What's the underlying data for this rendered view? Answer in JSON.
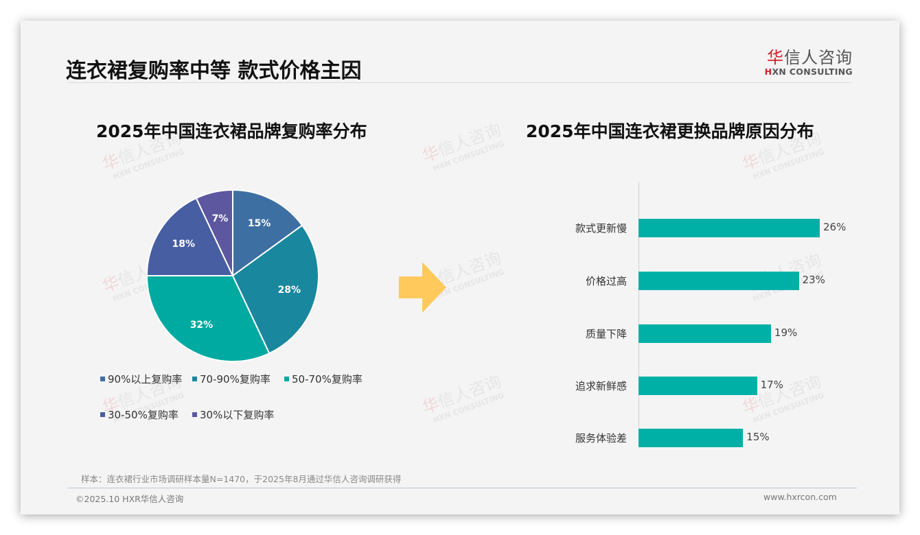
{
  "header": {
    "title": "连衣裙复购率中等 款式价格主因",
    "logo": {
      "cn_highlight": "华",
      "cn_rest": "信人咨询",
      "en_highlight": "H",
      "en_rest": "XN CONSULTING"
    }
  },
  "watermark": {
    "cn_highlight": "华",
    "cn_rest": "信人咨询",
    "en": "HXN CONSULTING"
  },
  "arrow": {
    "icon": "right-arrow-icon",
    "color": "#ffc95c"
  },
  "chart_data": [
    {
      "type": "pie",
      "title": "2025年中国连衣裙品牌复购率分布",
      "categories": [
        "90%以上复购率",
        "70-90%复购率",
        "50-70%复购率",
        "30-50%复购率",
        "30%以下复购率"
      ],
      "values": [
        15,
        28,
        32,
        18,
        7
      ],
      "value_labels": [
        "15%",
        "28%",
        "32%",
        "18%",
        "7%"
      ],
      "colors": [
        "#3e6fa3",
        "#19879e",
        "#00aaa0",
        "#485ea3",
        "#5d57a0"
      ],
      "start_angle": "12 o'clock",
      "direction": "clockwise",
      "legend_position": "bottom"
    },
    {
      "type": "bar",
      "orientation": "horizontal",
      "title": "2025年中国连衣裙更换品牌原因分布",
      "categories": [
        "款式更新慢",
        "价格过高",
        "质量下降",
        "追求新鲜感",
        "服务体验差"
      ],
      "values": [
        26,
        23,
        19,
        17,
        15
      ],
      "value_labels": [
        "26%",
        "23%",
        "19%",
        "17%",
        "15%"
      ],
      "unit": "%",
      "color": "#00b0a6",
      "grid": false,
      "xlabel": "",
      "ylabel": ""
    }
  ],
  "footer": {
    "note": "样本：连衣裙行业市场调研样本量N=1470，于2025年8月通过华信人咨询调研获得",
    "copyright": "©2025.10 HXR华信人咨询",
    "website": "www.hxrcon.com"
  }
}
